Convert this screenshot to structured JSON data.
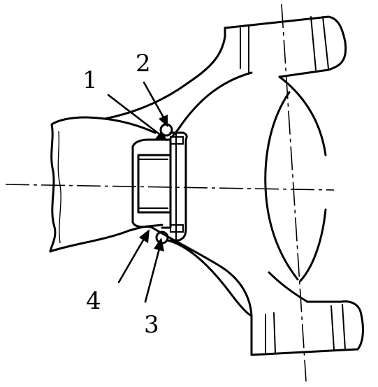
{
  "diagram": {
    "callouts": [
      {
        "id": "1",
        "label": "1"
      },
      {
        "id": "2",
        "label": "2"
      },
      {
        "id": "3",
        "label": "3"
      },
      {
        "id": "4",
        "label": "4"
      }
    ]
  }
}
